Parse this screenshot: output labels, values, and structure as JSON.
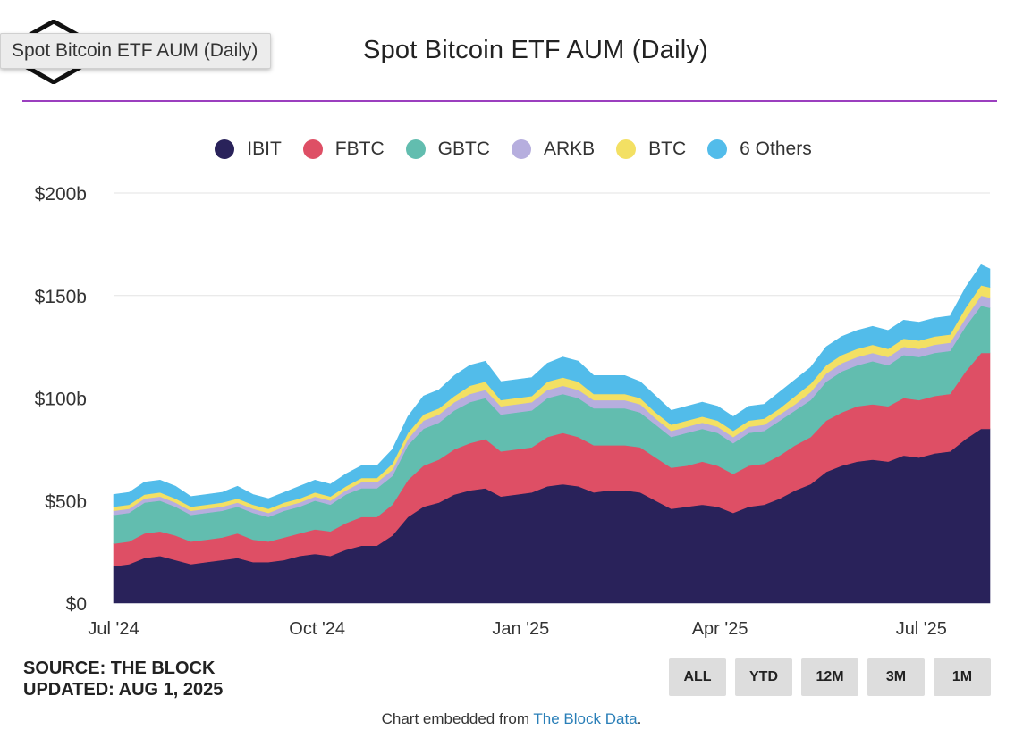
{
  "tooltip": "Spot Bitcoin ETF AUM (Daily)",
  "chart_data": {
    "type": "area",
    "stacked": true,
    "title": "Spot Bitcoin ETF AUM (Daily)",
    "xlabel": "",
    "ylabel": "",
    "ylim": [
      0,
      200
    ],
    "y_ticks": [
      {
        "value": 0,
        "label": "$0"
      },
      {
        "value": 50,
        "label": "$50b"
      },
      {
        "value": 100,
        "label": "$100b"
      },
      {
        "value": 150,
        "label": "$150b"
      },
      {
        "value": 200,
        "label": "$200b"
      }
    ],
    "x_ticks": [
      {
        "value": "2024-07-01",
        "label": "Jul '24"
      },
      {
        "value": "2024-10-01",
        "label": "Oct '24"
      },
      {
        "value": "2025-01-01",
        "label": "Jan '25"
      },
      {
        "value": "2025-04-01",
        "label": "Apr '25"
      },
      {
        "value": "2025-07-01",
        "label": "Jul '25"
      }
    ],
    "grid": true,
    "legend_position": "top",
    "x": [
      "2024-07-01",
      "2024-07-08",
      "2024-07-15",
      "2024-07-22",
      "2024-07-29",
      "2024-08-05",
      "2024-08-12",
      "2024-08-19",
      "2024-08-26",
      "2024-09-02",
      "2024-09-09",
      "2024-09-16",
      "2024-09-23",
      "2024-09-30",
      "2024-10-07",
      "2024-10-14",
      "2024-10-21",
      "2024-10-28",
      "2024-11-04",
      "2024-11-11",
      "2024-11-18",
      "2024-11-25",
      "2024-12-02",
      "2024-12-09",
      "2024-12-16",
      "2024-12-23",
      "2024-12-30",
      "2025-01-06",
      "2025-01-13",
      "2025-01-20",
      "2025-01-27",
      "2025-02-03",
      "2025-02-10",
      "2025-02-17",
      "2025-02-24",
      "2025-03-03",
      "2025-03-10",
      "2025-03-17",
      "2025-03-24",
      "2025-03-31",
      "2025-04-07",
      "2025-04-14",
      "2025-04-21",
      "2025-04-28",
      "2025-05-05",
      "2025-05-12",
      "2025-05-19",
      "2025-05-26",
      "2025-06-02",
      "2025-06-09",
      "2025-06-16",
      "2025-06-23",
      "2025-06-30",
      "2025-07-07",
      "2025-07-14",
      "2025-07-21",
      "2025-07-28",
      "2025-08-01"
    ],
    "series": [
      {
        "name": "IBIT",
        "color": "#29225a",
        "values": [
          18,
          19,
          22,
          23,
          21,
          19,
          20,
          21,
          22,
          20,
          20,
          21,
          23,
          24,
          23,
          26,
          28,
          28,
          33,
          42,
          47,
          49,
          53,
          55,
          56,
          52,
          53,
          54,
          57,
          58,
          57,
          54,
          55,
          55,
          54,
          50,
          46,
          47,
          48,
          47,
          44,
          47,
          48,
          51,
          55,
          58,
          64,
          67,
          69,
          70,
          69,
          72,
          71,
          73,
          74,
          80,
          85,
          85
        ]
      },
      {
        "name": "FBTC",
        "color": "#de4f65",
        "values": [
          11,
          11,
          12,
          12,
          12,
          11,
          11,
          11,
          12,
          11,
          10,
          11,
          11,
          12,
          12,
          13,
          14,
          14,
          15,
          18,
          20,
          21,
          22,
          23,
          24,
          22,
          22,
          22,
          24,
          25,
          24,
          23,
          22,
          22,
          22,
          21,
          20,
          20,
          21,
          20,
          19,
          20,
          20,
          21,
          22,
          23,
          25,
          26,
          27,
          27,
          27,
          28,
          28,
          28,
          28,
          33,
          37,
          37
        ]
      },
      {
        "name": "GBTC",
        "color": "#62bdaf",
        "values": [
          14,
          14,
          15,
          15,
          14,
          13,
          13,
          13,
          13,
          13,
          12,
          13,
          13,
          14,
          13,
          14,
          14,
          14,
          14,
          17,
          18,
          18,
          19,
          20,
          20,
          18,
          18,
          18,
          19,
          19,
          19,
          18,
          18,
          18,
          17,
          16,
          15,
          16,
          16,
          16,
          15,
          16,
          16,
          17,
          17,
          18,
          19,
          20,
          20,
          21,
          20,
          21,
          21,
          21,
          21,
          22,
          23,
          22
        ]
      },
      {
        "name": "ARKB",
        "color": "#b6aede",
        "values": [
          2,
          2,
          2,
          2,
          2,
          2,
          2,
          2,
          2,
          2,
          2,
          2,
          2,
          2,
          2,
          2,
          3,
          3,
          3,
          3,
          4,
          4,
          4,
          4,
          4,
          4,
          4,
          4,
          4,
          4,
          4,
          4,
          4,
          4,
          4,
          3,
          3,
          3,
          3,
          3,
          3,
          3,
          3,
          3,
          3,
          4,
          4,
          4,
          4,
          4,
          4,
          4,
          4,
          4,
          4,
          4,
          5,
          5
        ]
      },
      {
        "name": "BTC",
        "color": "#f3e063",
        "values": [
          2,
          2,
          2,
          2,
          2,
          2,
          2,
          2,
          2,
          2,
          2,
          2,
          2,
          2,
          2,
          2,
          2,
          2,
          3,
          3,
          3,
          3,
          3,
          4,
          4,
          3,
          3,
          3,
          4,
          4,
          4,
          3,
          3,
          3,
          3,
          3,
          3,
          3,
          3,
          3,
          3,
          3,
          3,
          3,
          4,
          4,
          4,
          4,
          4,
          4,
          4,
          4,
          4,
          4,
          4,
          5,
          5,
          5
        ]
      },
      {
        "name": "6 Others",
        "color": "#52bcea",
        "values": [
          6,
          6,
          6,
          6,
          6,
          5,
          5,
          5,
          6,
          5,
          5,
          5,
          6,
          6,
          6,
          6,
          6,
          6,
          7,
          8,
          9,
          9,
          10,
          10,
          10,
          9,
          9,
          9,
          9,
          10,
          10,
          9,
          9,
          9,
          8,
          8,
          7,
          7,
          7,
          7,
          7,
          7,
          7,
          8,
          8,
          8,
          9,
          9,
          9,
          9,
          9,
          9,
          9,
          9,
          9,
          10,
          10,
          9
        ]
      }
    ]
  },
  "source": {
    "line1": "SOURCE: THE BLOCK",
    "line2": "UPDATED: AUG 1, 2025"
  },
  "ranges": [
    "ALL",
    "YTD",
    "12M",
    "3M",
    "1M"
  ],
  "footer": {
    "prefix": "Chart embedded from ",
    "link": "The Block Data",
    "suffix": "."
  }
}
